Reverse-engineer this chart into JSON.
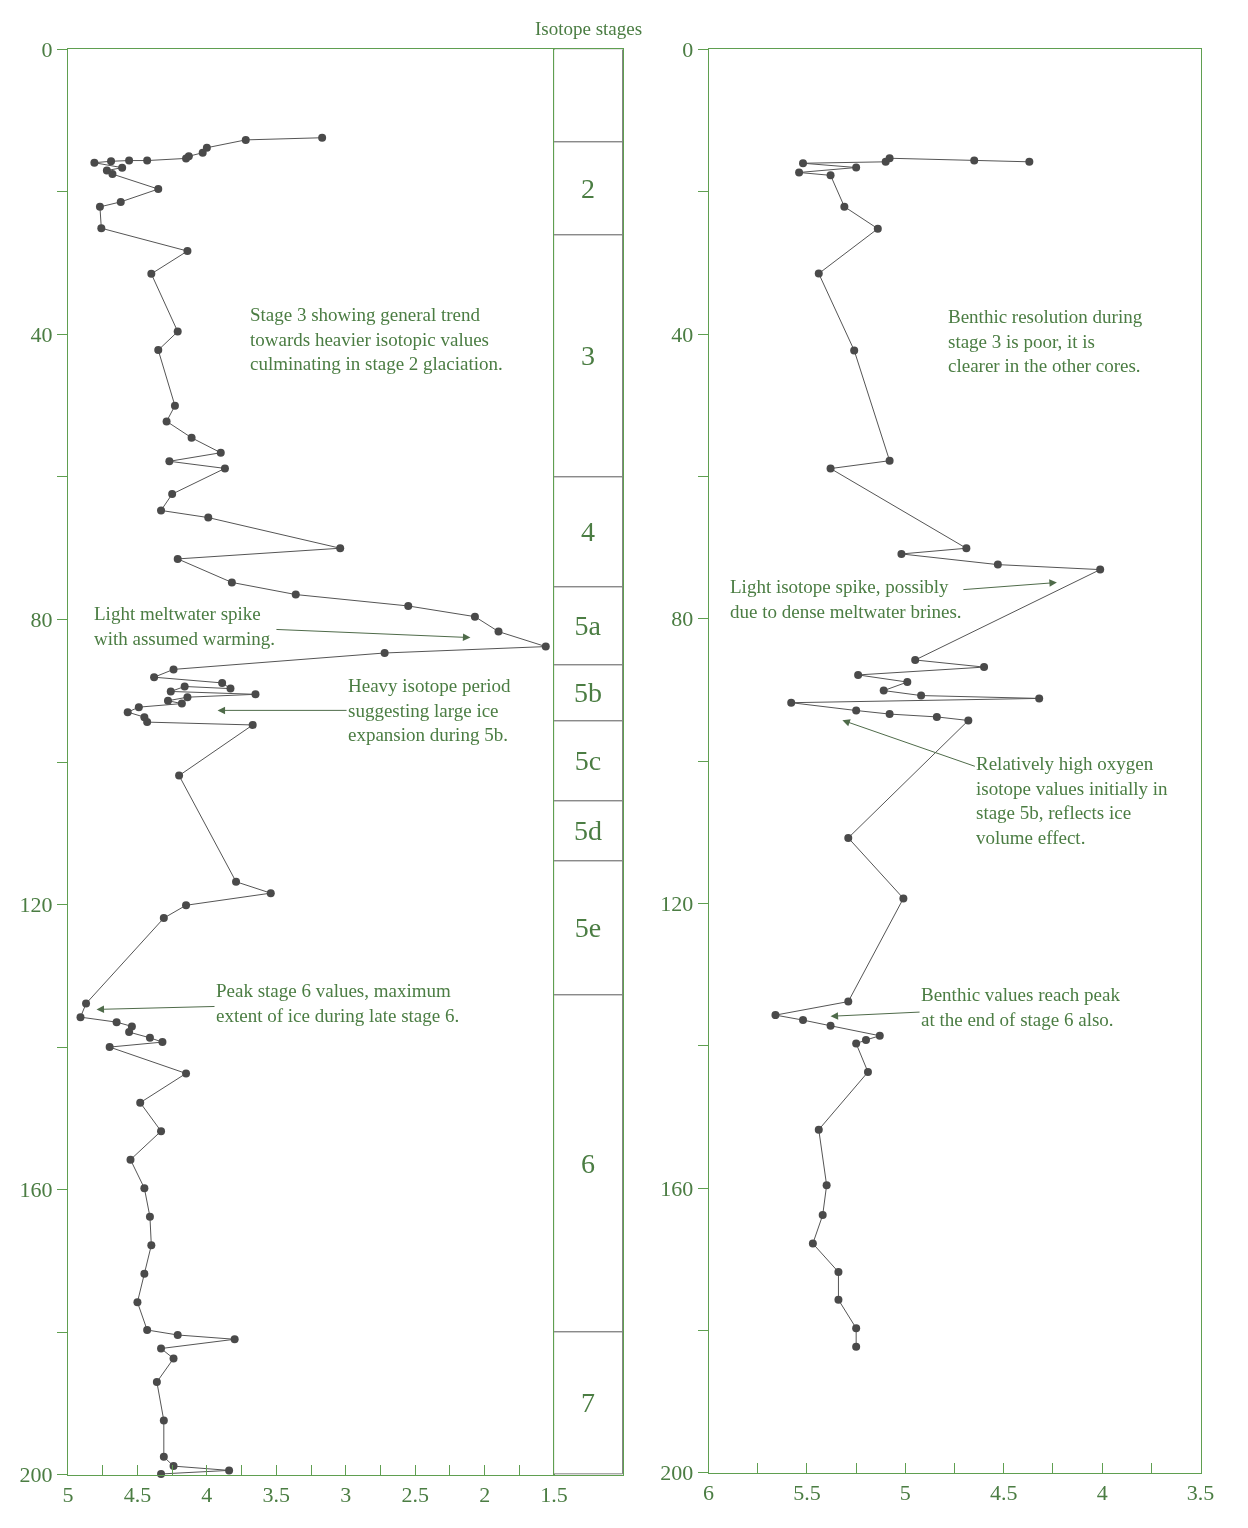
{
  "chart_data": [
    {
      "type": "line",
      "marker": "circle",
      "line_style": "solid",
      "xlim": [
        5,
        1.5
      ],
      "ylim": [
        200,
        0
      ],
      "xticks": [
        5,
        {
          "value": 4.75,
          "label": null
        },
        4.5,
        {
          "value": 4.25,
          "label": null
        },
        4,
        {
          "value": 3.75,
          "label": null
        },
        3.5,
        {
          "value": 3.25,
          "label": null
        },
        3,
        {
          "value": 2.75,
          "label": null
        },
        2.5,
        {
          "value": 2.25,
          "label": null
        },
        2,
        {
          "value": 1.75,
          "label": null
        },
        1.5
      ],
      "yticks": [
        0,
        {
          "value": 20,
          "label": null
        },
        40,
        {
          "value": 60,
          "label": null
        },
        80,
        {
          "value": 100,
          "label": null
        },
        120,
        {
          "value": 140,
          "label": null
        },
        160,
        {
          "value": 180,
          "label": null
        },
        200
      ],
      "series": [
        {
          "color": "#555555",
          "x": [
            3.17,
            3.72,
            4.0,
            4.03,
            4.13,
            4.15,
            4.43,
            4.56,
            4.69,
            4.81,
            4.61,
            4.72,
            4.68,
            4.35,
            4.62,
            4.77,
            4.76,
            4.14,
            4.4,
            4.21,
            4.35,
            4.23,
            4.29,
            4.11,
            3.9,
            4.27,
            3.87,
            4.25,
            4.33,
            3.99,
            3.04,
            4.21,
            3.82,
            3.36,
            2.55,
            2.07,
            1.9,
            1.56,
            2.72,
            4.24,
            4.38,
            3.89,
            3.83,
            4.16,
            4.26,
            3.65,
            4.14,
            4.28,
            4.18,
            4.49,
            4.57,
            4.45,
            4.43,
            3.67,
            4.2,
            3.79,
            3.54,
            4.15,
            4.31,
            4.87,
            4.91,
            4.65,
            4.54,
            4.56,
            4.41,
            4.32,
            4.7,
            4.15,
            4.48,
            4.33,
            4.55,
            4.45,
            4.41,
            4.4,
            4.45,
            4.5,
            4.43,
            4.21,
            3.8,
            4.33,
            4.24,
            4.36,
            4.31,
            4.31,
            4.24,
            3.84,
            4.33
          ],
          "values": [
            12.4,
            12.7,
            13.8,
            14.5,
            15.0,
            15.3,
            15.6,
            15.6,
            15.7,
            15.9,
            16.6,
            17.0,
            17.5,
            19.6,
            21.4,
            22.1,
            25.1,
            28.3,
            31.5,
            39.6,
            42.2,
            50.0,
            52.2,
            54.5,
            56.6,
            57.8,
            58.8,
            62.4,
            64.7,
            65.7,
            70.0,
            71.5,
            74.8,
            76.5,
            78.1,
            79.6,
            81.7,
            83.8,
            84.7,
            87.0,
            88.1,
            88.9,
            89.7,
            89.4,
            90.1,
            90.5,
            90.9,
            91.4,
            91.8,
            92.3,
            93.0,
            93.7,
            94.4,
            94.8,
            101.9,
            116.8,
            118.4,
            120.1,
            121.9,
            133.9,
            135.8,
            136.5,
            137.1,
            137.9,
            138.7,
            139.3,
            140.0,
            143.7,
            147.8,
            151.8,
            155.8,
            159.8,
            163.8,
            167.8,
            171.8,
            175.8,
            179.7,
            180.4,
            181.0,
            182.3,
            183.7,
            187.0,
            192.4,
            197.5,
            198.8,
            199.4,
            199.9
          ]
        }
      ],
      "annotations": [
        "Stage 3 showing general trend\ntowards heavier isotopic values\nculminating in stage 2 glaciation.",
        "Light meltwater spike\nwith assumed warming.",
        "Heavy isotope period\nsuggesting large ice\nexpansion during 5b.",
        "Peak stage 6 values, maximum\nextent of ice during late stage 6."
      ]
    },
    {
      "type": "bar",
      "stacked": true,
      "title": "Isotope stages",
      "categories": [
        null
      ],
      "ylim": [
        200,
        0
      ],
      "series": [
        {
          "color": "#ffffff",
          "values": [
            13.1
          ]
        },
        {
          "name": "2",
          "color": "#ffffff",
          "values": [
            13.0
          ]
        },
        {
          "name": "3",
          "color": "#ffffff",
          "values": [
            33.9
          ]
        },
        {
          "name": "4",
          "color": "#ffffff",
          "values": [
            15.5
          ]
        },
        {
          "name": "5a",
          "color": "#ffffff",
          "values": [
            11.0
          ]
        },
        {
          "name": "5b",
          "color": "#ffffff",
          "values": [
            7.8
          ]
        },
        {
          "name": "5c",
          "color": "#ffffff",
          "values": [
            11.2
          ]
        },
        {
          "name": "5d",
          "color": "#ffffff",
          "values": [
            8.5
          ]
        },
        {
          "name": "5e",
          "color": "#ffffff",
          "values": [
            18.8
          ]
        },
        {
          "name": "6",
          "color": "#ffffff",
          "values": [
            47.3
          ]
        },
        {
          "name": "7",
          "color": "#ffffff",
          "values": [
            19.9
          ]
        }
      ]
    },
    {
      "type": "line",
      "marker": "circle",
      "line_style": "solid",
      "xlim": [
        6,
        3.5
      ],
      "ylim": [
        200,
        0
      ],
      "xticks": [
        6,
        {
          "value": 5.75,
          "label": null
        },
        5.5,
        {
          "value": 5.25,
          "label": null
        },
        5,
        {
          "value": 4.75,
          "label": null
        },
        4.5,
        {
          "value": 4.25,
          "label": null
        },
        4,
        {
          "value": 3.75,
          "label": null
        },
        3.5
      ],
      "yticks": [
        0,
        {
          "value": 20,
          "label": null
        },
        40,
        {
          "value": 60,
          "label": null
        },
        80,
        {
          "value": 100,
          "label": null
        },
        120,
        {
          "value": 140,
          "label": null
        },
        160,
        {
          "value": 180,
          "label": null
        },
        200
      ],
      "series": [
        {
          "color": "#555555",
          "x": [
            4.37,
            4.65,
            5.08,
            5.1,
            5.52,
            5.25,
            5.54,
            5.38,
            5.31,
            5.14,
            5.44,
            5.26,
            5.08,
            5.38,
            4.69,
            5.02,
            4.53,
            4.01,
            4.95,
            4.6,
            5.24,
            4.99,
            5.11,
            4.92,
            4.32,
            5.58,
            5.25,
            5.08,
            4.84,
            4.68,
            5.29,
            5.01,
            5.29,
            5.66,
            5.52,
            5.38,
            5.13,
            5.2,
            5.25,
            5.19,
            5.44,
            5.4,
            5.42,
            5.47,
            5.34,
            5.34,
            5.25,
            5.25
          ],
          "values": [
            15.8,
            15.6,
            15.3,
            15.8,
            16.0,
            16.6,
            17.3,
            17.7,
            22.1,
            25.2,
            31.5,
            42.3,
            57.8,
            58.9,
            70.1,
            70.9,
            72.4,
            73.1,
            85.8,
            86.8,
            87.9,
            88.9,
            90.1,
            90.8,
            91.2,
            91.8,
            92.9,
            93.4,
            93.8,
            94.3,
            110.8,
            119.3,
            133.8,
            135.7,
            136.4,
            137.2,
            138.6,
            139.2,
            139.7,
            143.7,
            151.8,
            159.6,
            163.8,
            167.8,
            171.8,
            175.7,
            179.7,
            182.3
          ]
        }
      ],
      "annotations": [
        "Benthic resolution during\nstage 3 is poor, it is\nclearer in the other cores.",
        "Light isotope spike, possibly\ndue to dense meltwater brines.",
        "Relatively high oxygen\nisotope values initially in\nstage 5b, reflects ice\nvolume effect.",
        "Benthic values reach peak\nat the end of stage 6 also."
      ]
    }
  ]
}
